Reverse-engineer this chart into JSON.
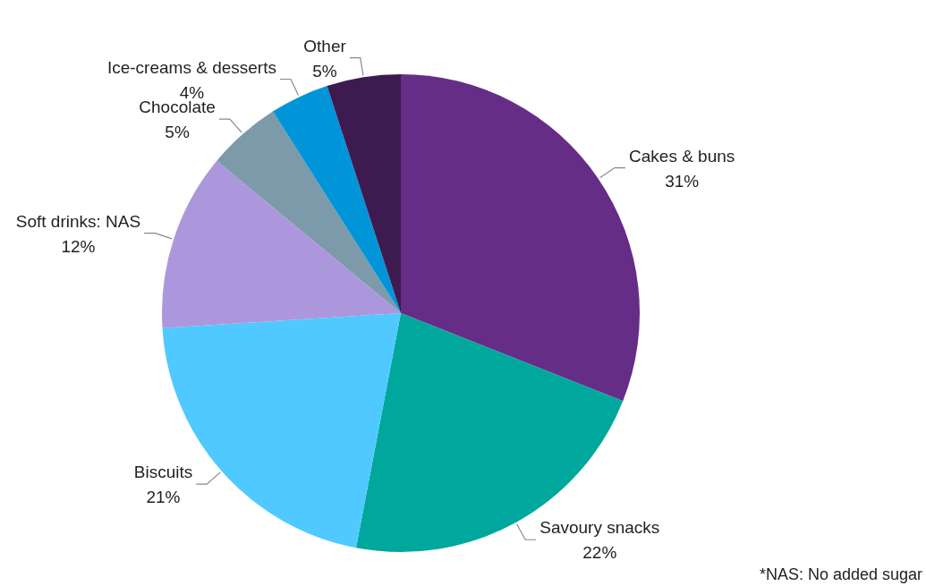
{
  "chart_data": {
    "type": "pie",
    "categories": [
      "Cakes & buns",
      "Savoury snacks",
      "Biscuits",
      "Soft drinks: NAS",
      "Chocolate",
      "Ice-creams & desserts",
      "Other"
    ],
    "values": [
      31,
      22,
      21,
      12,
      5,
      4,
      5
    ],
    "value_labels": [
      "31%",
      "22%",
      "21%",
      "12%",
      "5%",
      "4%",
      "5%"
    ],
    "colors": [
      "#662d87",
      "#00a79d",
      "#4fc9ff",
      "#ac97dd",
      "#7d9aab",
      "#0095d9",
      "#3d1a4f"
    ],
    "legend": false,
    "annotations": [
      "*NAS: No added sugar"
    ]
  }
}
